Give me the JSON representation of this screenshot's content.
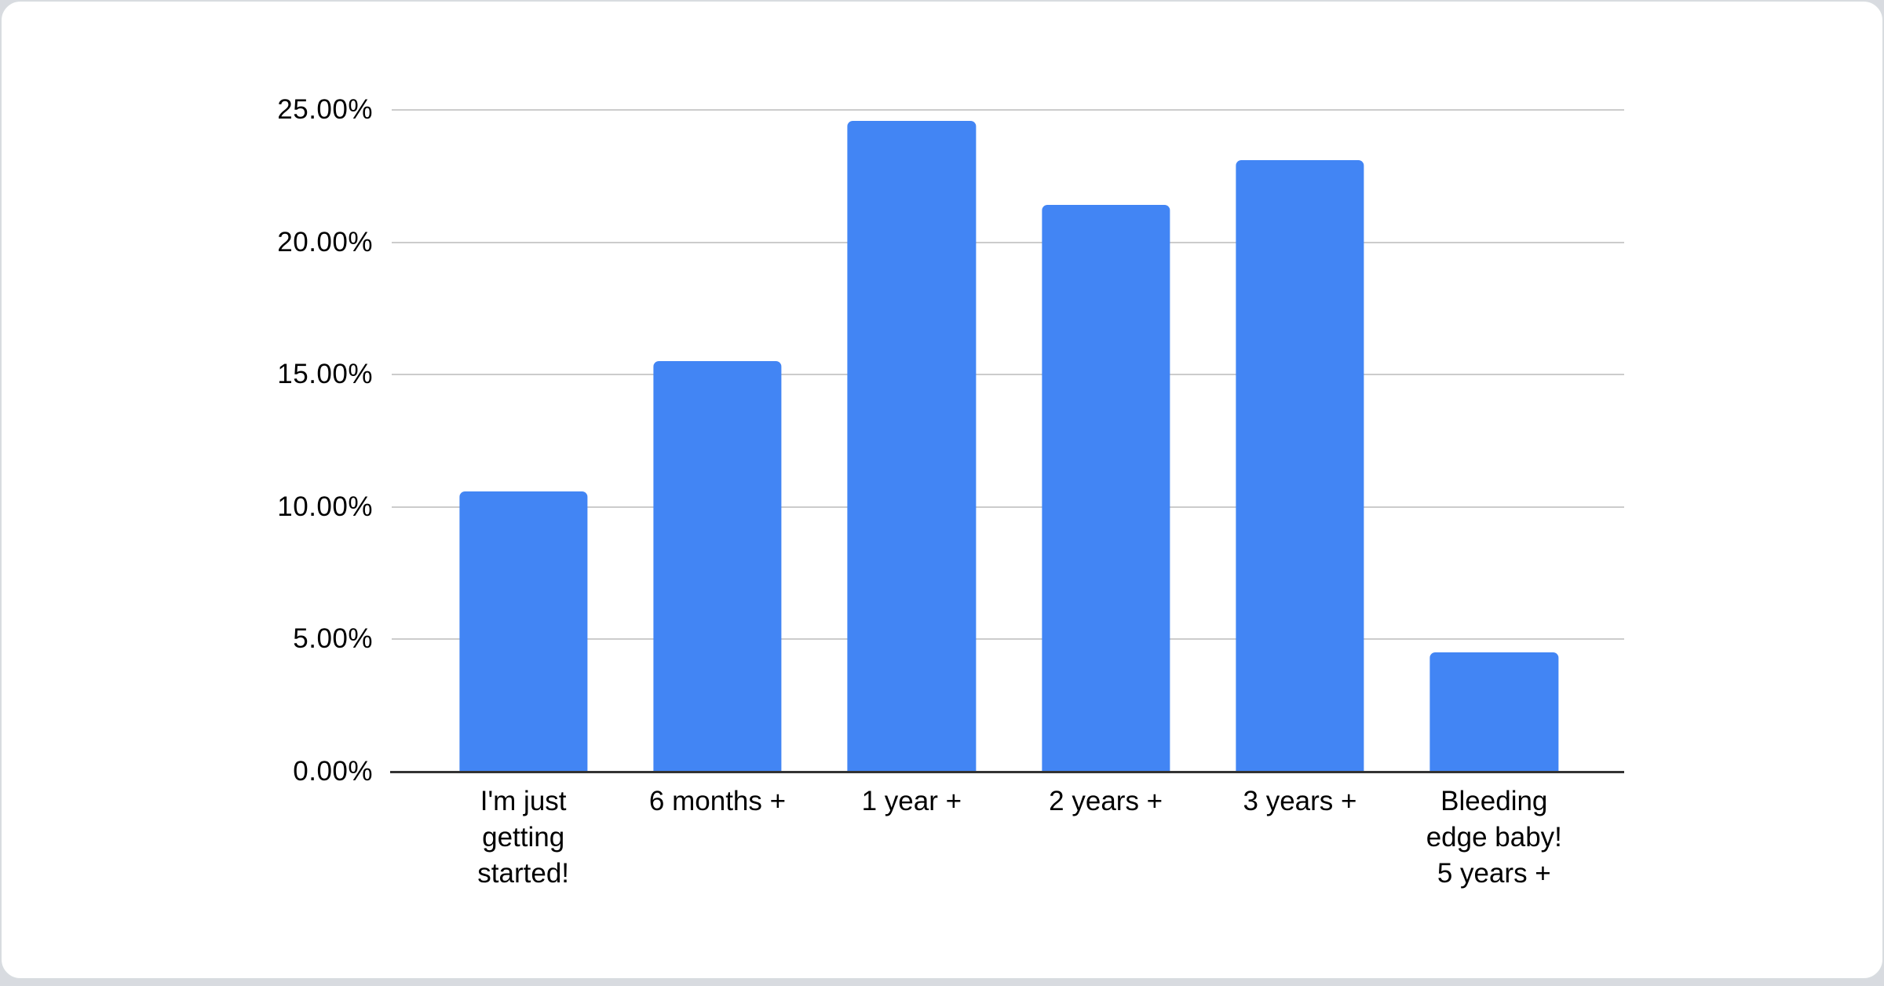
{
  "chart_data": {
    "type": "bar",
    "categories": [
      "I'm just getting started!",
      "6 months +",
      "1 year +",
      "2 years +",
      "3 years +",
      "Bleeding edge baby! 5 years +"
    ],
    "values": [
      10.6,
      15.5,
      24.6,
      21.4,
      23.1,
      4.5
    ],
    "value_unit": "%",
    "ylim": [
      0,
      25
    ],
    "ytick_labels": [
      "0.00%",
      "5.00%",
      "10.00%",
      "15.00%",
      "20.00%",
      "25.00%"
    ],
    "grid": true,
    "legend": false,
    "title": "",
    "xlabel": "",
    "ylabel": "",
    "bar_color": "#4285f4",
    "gridline_color": "#cccccc",
    "axis_line_color": "#333333",
    "label_color": "#000000",
    "card_background": "#ffffff",
    "card_border_color": "#d8dce0",
    "page_background": "#d8dbe0"
  }
}
